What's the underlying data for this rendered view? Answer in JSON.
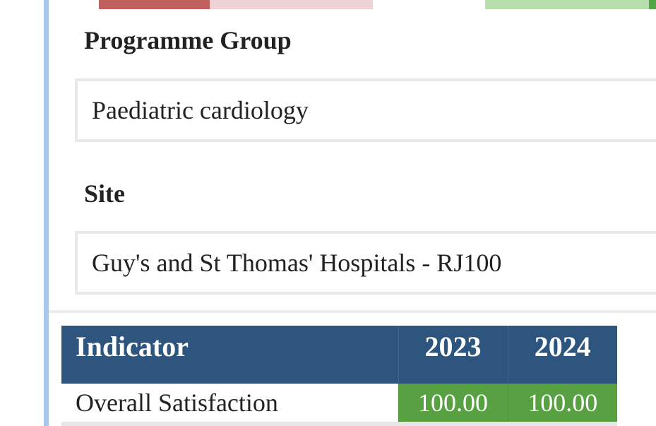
{
  "colors": {
    "left_rule": "#a9c7ee",
    "bar_red_dark": "#c0605f",
    "bar_red_light": "#efd2d5",
    "bar_green_light": "#b6dfac",
    "bar_green_dark": "#57a446",
    "table_header": "#2d557d",
    "score_good": "#58a142"
  },
  "filters": {
    "programme_group": {
      "label": "Programme Group",
      "value": "Paediatric cardiology"
    },
    "site": {
      "label": "Site",
      "value": "Guy's and St Thomas' Hospitals - RJ100"
    }
  },
  "table": {
    "headers": {
      "indicator": "Indicator",
      "year_1": "2023",
      "year_2": "2024"
    },
    "rows": [
      {
        "indicator": "Overall Satisfaction",
        "year_1": "100.00",
        "year_2": "100.00"
      }
    ]
  }
}
